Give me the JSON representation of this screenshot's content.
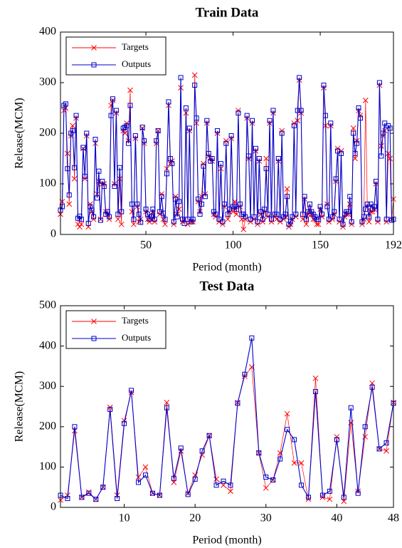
{
  "chart_data": [
    {
      "type": "line",
      "title": "Train Data",
      "x_label": "Period (month)",
      "y_label": "Release(MCM)",
      "xlim": [
        1,
        192
      ],
      "ylim": [
        0,
        400
      ],
      "xticks": [
        50,
        100,
        150,
        192
      ],
      "yticks": [
        0,
        100,
        200,
        300,
        400
      ],
      "legend": "upper left",
      "x": [
        1,
        2,
        3,
        4,
        5,
        6,
        7,
        8,
        9,
        10,
        11,
        12,
        13,
        14,
        15,
        16,
        17,
        18,
        19,
        20,
        21,
        22,
        23,
        24,
        25,
        26,
        27,
        28,
        29,
        30,
        31,
        32,
        33,
        34,
        35,
        36,
        37,
        38,
        39,
        40,
        41,
        42,
        43,
        44,
        45,
        46,
        47,
        48,
        49,
        50,
        51,
        52,
        53,
        54,
        55,
        56,
        57,
        58,
        59,
        60,
        61,
        62,
        63,
        64,
        65,
        66,
        67,
        68,
        69,
        70,
        71,
        72,
        73,
        74,
        75,
        76,
        77,
        78,
        79,
        80,
        81,
        82,
        83,
        84,
        85,
        86,
        87,
        88,
        89,
        90,
        91,
        92,
        93,
        94,
        95,
        96,
        97,
        98,
        99,
        100,
        101,
        102,
        103,
        104,
        105,
        106,
        107,
        108,
        109,
        110,
        111,
        112,
        113,
        114,
        115,
        116,
        117,
        118,
        119,
        120,
        121,
        122,
        123,
        124,
        125,
        126,
        127,
        128,
        129,
        130,
        131,
        132,
        133,
        134,
        135,
        136,
        137,
        138,
        139,
        140,
        141,
        142,
        143,
        144,
        145,
        146,
        147,
        148,
        149,
        150,
        151,
        152,
        153,
        154,
        155,
        156,
        157,
        158,
        159,
        160,
        161,
        162,
        163,
        164,
        165,
        166,
        167,
        168,
        169,
        170,
        171,
        172,
        173,
        174,
        175,
        176,
        177,
        178,
        179,
        180,
        181,
        182,
        183,
        184,
        185,
        186,
        187,
        188,
        189,
        190,
        191,
        192
      ],
      "series": [
        {
          "name": "Targets",
          "color": "#ff0000",
          "marker": "x",
          "values": [
            40,
            65,
            245,
            250,
            160,
            60,
            195,
            215,
            110,
            230,
            20,
            15,
            20,
            170,
            110,
            195,
            15,
            60,
            45,
            30,
            180,
            80,
            105,
            30,
            100,
            100,
            45,
            40,
            30,
            255,
            265,
            100,
            240,
            30,
            110,
            20,
            205,
            200,
            220,
            185,
            285,
            45,
            20,
            190,
            55,
            25,
            30,
            210,
            180,
            45,
            30,
            25,
            30,
            45,
            25,
            180,
            205,
            40,
            80,
            30,
            20,
            130,
            255,
            140,
            145,
            20,
            75,
            40,
            50,
            290,
            25,
            30,
            240,
            20,
            205,
            25,
            25,
            315,
            220,
            65,
            45,
            75,
            140,
            80,
            220,
            155,
            150,
            145,
            40,
            35,
            200,
            25,
            130,
            20,
            55,
            185,
            30,
            45,
            190,
            45,
            65,
            40,
            245,
            55,
            30,
            10,
            30,
            230,
            150,
            25,
            220,
            30,
            165,
            20,
            145,
            40,
            25,
            45,
            150,
            35,
            220,
            25,
            240,
            35,
            30,
            145,
            25,
            205,
            30,
            35,
            90,
            15,
            20,
            30,
            220,
            35,
            225,
            305,
            240,
            30,
            70,
            20,
            40,
            50,
            40,
            30,
            30,
            20,
            20,
            50,
            35,
            290,
            215,
            60,
            25,
            215,
            30,
            40,
            105,
            170,
            25,
            165,
            15,
            35,
            40,
            40,
            60,
            20,
            210,
            150,
            185,
            245,
            235,
            20,
            30,
            265,
            55,
            25,
            45,
            45,
            50,
            100,
            25,
            295,
            175,
            195,
            205,
            25,
            160,
            150,
            30,
            70
          ]
        },
        {
          "name": "Outputs",
          "color": "#0000cc",
          "marker": "square",
          "values": [
            48,
            55,
            255,
            258,
            130,
            78,
            200,
            205,
            132,
            235,
            32,
            36,
            30,
            172,
            115,
            200,
            22,
            55,
            48,
            35,
            188,
            72,
            125,
            28,
            105,
            95,
            40,
            45,
            35,
            235,
            268,
            95,
            245,
            40,
            132,
            45,
            210,
            212,
            215,
            180,
            255,
            60,
            30,
            195,
            60,
            40,
            24,
            212,
            185,
            50,
            40,
            30,
            35,
            50,
            30,
            185,
            205,
            45,
            75,
            42,
            30,
            120,
            262,
            150,
            140,
            25,
            70,
            35,
            65,
            310,
            30,
            22,
            250,
            30,
            210,
            25,
            30,
            295,
            230,
            70,
            40,
            60,
            135,
            75,
            225,
            160,
            145,
            150,
            45,
            40,
            205,
            30,
            140,
            25,
            60,
            180,
            40,
            50,
            195,
            55,
            55,
            50,
            240,
            60,
            40,
            40,
            35,
            235,
            155,
            30,
            225,
            35,
            170,
            25,
            150,
            45,
            30,
            50,
            130,
            40,
            225,
            30,
            245,
            40,
            40,
            150,
            30,
            200,
            35,
            40,
            75,
            20,
            25,
            35,
            215,
            40,
            245,
            310,
            245,
            40,
            75,
            30,
            45,
            60,
            45,
            40,
            35,
            30,
            30,
            55,
            40,
            295,
            235,
            55,
            30,
            220,
            35,
            45,
            110,
            165,
            30,
            160,
            20,
            40,
            45,
            45,
            75,
            25,
            200,
            160,
            180,
            250,
            230,
            25,
            35,
            50,
            60,
            35,
            60,
            50,
            55,
            105,
            30,
            300,
            155,
            200,
            220,
            30,
            215,
            210,
            28,
            30
          ]
        }
      ]
    },
    {
      "type": "line",
      "title": "Test Data",
      "x_label": "Period (month)",
      "y_label": "Release(MCM)",
      "xlim": [
        1,
        48
      ],
      "ylim": [
        0,
        500
      ],
      "xticks": [
        10,
        20,
        30,
        40,
        48
      ],
      "yticks": [
        0,
        100,
        200,
        300,
        400,
        500
      ],
      "legend": "upper left",
      "x": [
        1,
        2,
        3,
        4,
        5,
        6,
        7,
        8,
        9,
        10,
        11,
        12,
        13,
        14,
        15,
        16,
        17,
        18,
        19,
        20,
        21,
        22,
        23,
        24,
        25,
        26,
        27,
        28,
        29,
        30,
        31,
        32,
        33,
        34,
        35,
        36,
        37,
        38,
        39,
        40,
        41,
        42,
        43,
        44,
        45,
        46,
        47,
        48
      ],
      "series": [
        {
          "name": "Targets",
          "color": "#ff0000",
          "marker": "x",
          "values": [
            18,
            30,
            190,
            25,
            38,
            20,
            50,
            248,
            30,
            215,
            285,
            75,
            100,
            35,
            30,
            260,
            62,
            140,
            35,
            80,
            130,
            178,
            70,
            55,
            40,
            260,
            325,
            348,
            135,
            48,
            68,
            135,
            232,
            110,
            110,
            20,
            320,
            25,
            20,
            175,
            15,
            210,
            40,
            175,
            308,
            145,
            140,
            260
          ]
        },
        {
          "name": "Outputs",
          "color": "#0000cc",
          "marker": "square",
          "values": [
            30,
            22,
            200,
            25,
            35,
            20,
            50,
            243,
            22,
            208,
            290,
            62,
            80,
            35,
            30,
            247,
            72,
            147,
            32,
            70,
            140,
            178,
            55,
            65,
            55,
            258,
            330,
            420,
            135,
            75,
            68,
            120,
            193,
            168,
            55,
            25,
            287,
            30,
            40,
            168,
            25,
            247,
            35,
            200,
            298,
            145,
            160,
            258
          ]
        }
      ]
    }
  ]
}
